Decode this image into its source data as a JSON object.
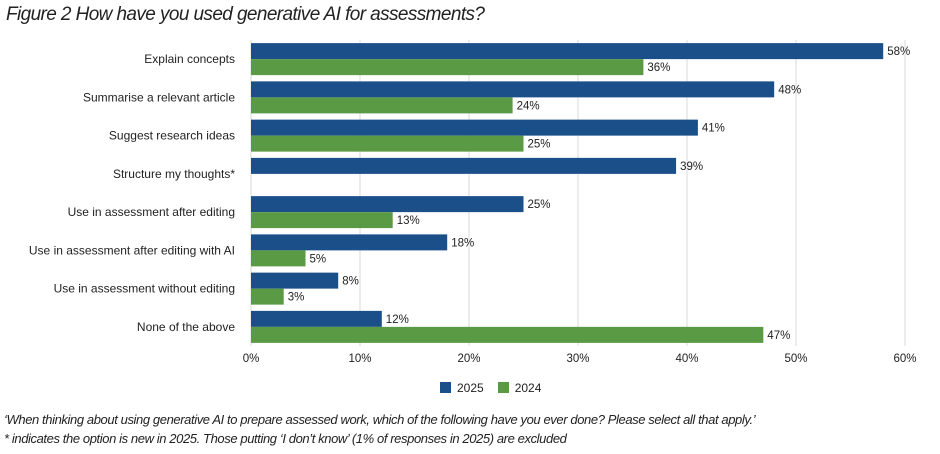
{
  "title": "Figure 2 How have you used generative AI for assessments?",
  "chart_data": {
    "type": "bar",
    "orientation": "horizontal",
    "title": "Figure 2 How have you used generative AI for assessments?",
    "categories": [
      "Explain concepts",
      "Summarise a relevant article",
      "Suggest research ideas",
      "Structure my thoughts*",
      "Use in assessment after editing",
      "Use in assessment after editing with AI",
      "Use in assessment without editing",
      "None of the above"
    ],
    "series": [
      {
        "name": "2025",
        "color": "#1b4f8a",
        "values": [
          58,
          48,
          41,
          39,
          25,
          18,
          8,
          12
        ]
      },
      {
        "name": "2024",
        "color": "#5b9a44",
        "values": [
          36,
          24,
          25,
          null,
          13,
          5,
          3,
          47
        ]
      }
    ],
    "xlim": [
      0,
      60
    ],
    "xticks": [
      "0%",
      "10%",
      "20%",
      "30%",
      "40%",
      "50%",
      "60%"
    ],
    "grid": true,
    "legend_position": "bottom"
  },
  "legend": [
    "2025",
    "2024"
  ],
  "notes": [
    "‘When thinking about using generative AI to prepare assessed work, which of the following have you ever done? Please select all that apply.’",
    "* indicates the option is new in 2025. Those putting ‘I don’t know’ (1% of responses in 2025) are excluded"
  ]
}
